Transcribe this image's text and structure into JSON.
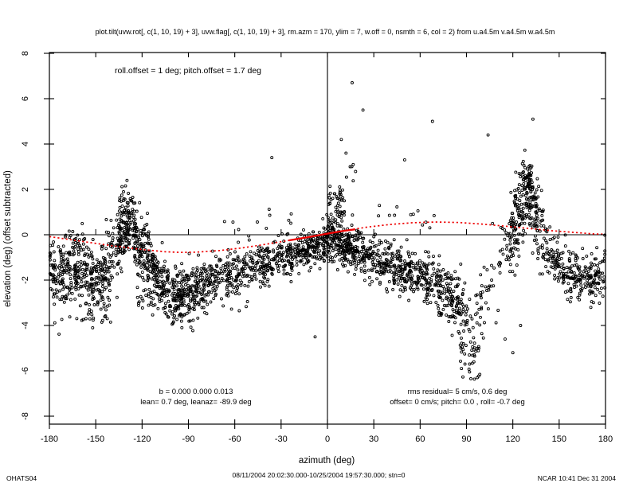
{
  "title": "plot.tilt(uvw.rot[, c(1, 10, 19) + 3], uvw.flag[, c(1, 10, 19) + 3], rm.azm =  170, ylim = 7, w.off = 0, nsmth = 6, col = 2) from u.a4.5m v.a4.5m w.a4.5m",
  "annotations": {
    "offsets": "roll.offset = 1 deg; pitch.offset = 1.7 deg",
    "b_line": "b =  0.000  0.000  0.013",
    "lean_line": "lean= 0.7 deg, leanaz= -89.9 deg",
    "rms_line": "rms residual= 5 cm/s, 0.6 deg",
    "offset_line": "offset= 0 cm/s; pitch=  0.0 , roll= -0.7 deg"
  },
  "footer": {
    "left": "OHATS04",
    "center": "08/11/2004 20:02:30.000-10/25/2004 19:57:30.000; stn=0",
    "right": "NCAR 10:41 Dec 31 2004"
  },
  "chart_data": {
    "type": "scatter",
    "title": "plot.tilt(uvw.rot[, c(1, 10, 19) + 3], uvw.flag[, c(1, 10, 19) + 3], rm.azm =  170, ylim = 7, w.off = 0, nsmth = 6, col = 2) from u.a4.5m v.a4.5m w.a4.5m",
    "xlabel": "azimuth (deg)",
    "ylabel": "elevation (deg)  (offset subtracted)",
    "xlim": [
      -180,
      180
    ],
    "ylim": [
      -8.35,
      8.05
    ],
    "x_ticks": [
      -180,
      -150,
      -120,
      -90,
      -60,
      -30,
      0,
      30,
      60,
      90,
      120,
      150,
      180
    ],
    "y_ticks": [
      -8,
      -6,
      -4,
      -2,
      0,
      2,
      4,
      6,
      8
    ],
    "grid": false,
    "crosshair": {
      "x": 0,
      "y": 0
    },
    "marker": {
      "shape": "open-circle",
      "radius": 1.5,
      "color": "#000000"
    },
    "fit_color": "#ee0000",
    "point_color": "#000000",
    "seed": 1337,
    "band": {
      "az": [
        -180,
        -170,
        -162,
        -155,
        -148,
        -142,
        -137,
        -132,
        -128,
        -124,
        -119,
        -113,
        -107,
        -100,
        -92,
        -84,
        -75,
        -65,
        -55,
        -45,
        -35,
        -25,
        -15,
        -8,
        -2,
        3,
        8,
        15,
        25,
        35,
        45,
        55,
        65,
        75,
        82,
        88,
        94,
        100,
        107,
        113,
        118,
        124,
        129,
        133,
        138,
        143,
        150,
        160,
        170,
        180
      ],
      "mean": [
        -1.7,
        -1.85,
        -1.5,
        -1.95,
        -2.0,
        -1.6,
        -0.7,
        0.3,
        0.6,
        0.1,
        -0.7,
        -1.6,
        -2.3,
        -2.6,
        -2.6,
        -2.4,
        -2.05,
        -1.85,
        -1.7,
        -1.45,
        -1.2,
        -0.95,
        -0.7,
        -0.5,
        -0.35,
        -0.3,
        -0.4,
        -0.6,
        -0.85,
        -1.15,
        -1.4,
        -1.7,
        -2.0,
        -2.45,
        -2.9,
        -3.6,
        -4.2,
        -3.2,
        -1.9,
        -1.0,
        -0.3,
        0.9,
        1.9,
        1.6,
        0.2,
        -0.7,
        -1.4,
        -1.85,
        -1.9,
        -1.75
      ],
      "sd": [
        0.85,
        0.8,
        0.9,
        0.7,
        0.65,
        0.9,
        1.0,
        0.8,
        0.7,
        0.8,
        0.8,
        0.7,
        0.6,
        0.55,
        0.6,
        0.6,
        0.55,
        0.5,
        0.5,
        0.5,
        0.5,
        0.45,
        0.45,
        0.4,
        0.4,
        0.45,
        0.45,
        0.45,
        0.5,
        0.5,
        0.5,
        0.5,
        0.55,
        0.6,
        0.7,
        0.9,
        1.0,
        1.1,
        0.9,
        0.8,
        0.8,
        0.9,
        0.7,
        0.8,
        0.8,
        0.7,
        0.6,
        0.55,
        0.55,
        0.6
      ]
    },
    "segments": [
      [
        -180,
        -160,
        180
      ],
      [
        -160,
        -145,
        135
      ],
      [
        -145,
        -136,
        70
      ],
      [
        -136,
        -120,
        215
      ],
      [
        -120,
        -100,
        205
      ],
      [
        -100,
        -75,
        260
      ],
      [
        -75,
        -45,
        180
      ],
      [
        -45,
        -20,
        170
      ],
      [
        -20,
        -3,
        130
      ],
      [
        -3,
        15,
        190
      ],
      [
        15,
        45,
        225
      ],
      [
        45,
        70,
        190
      ],
      [
        70,
        88,
        150
      ],
      [
        88,
        103,
        48
      ],
      [
        103,
        118,
        36
      ],
      [
        118,
        137,
        230
      ],
      [
        137,
        152,
        90
      ],
      [
        152,
        180,
        190
      ]
    ],
    "plumes": [
      {
        "az0": 0,
        "az1": 11,
        "el0": -0.1,
        "el1": 2.25,
        "count": 70
      },
      {
        "az0": 8,
        "az1": 20,
        "el0": 2.2,
        "el1": 3.9,
        "count": 6
      },
      {
        "az0": 86,
        "az1": 99,
        "el0": -6.4,
        "el1": -4.4,
        "count": 26
      },
      {
        "az0": -160,
        "az1": -140,
        "el0": -3.9,
        "el1": -3.0,
        "count": 18
      },
      {
        "az0": -170,
        "az1": -157,
        "el0": -0.65,
        "el1": 0.1,
        "count": 16
      },
      {
        "az0": 126,
        "az1": 133,
        "el0": 2.2,
        "el1": 3.3,
        "count": 20
      },
      {
        "az0": -124,
        "az1": -112,
        "el0": -3.6,
        "el1": -2.6,
        "count": 14
      },
      {
        "az0": 30,
        "az1": 75,
        "el0": 0.3,
        "el1": 1.4,
        "count": 12
      },
      {
        "az0": -70,
        "az1": -20,
        "el0": 0.2,
        "el1": 1.2,
        "count": 10
      }
    ],
    "outliers": [
      [
        16,
        6.7
      ],
      [
        23,
        5.5
      ],
      [
        9,
        4.2
      ],
      [
        12,
        3.6
      ],
      [
        -36,
        3.4
      ],
      [
        50,
        3.3
      ],
      [
        68,
        5.0
      ],
      [
        133,
        5.1
      ],
      [
        104,
        4.4
      ],
      [
        97,
        -6.3
      ],
      [
        92,
        -6.05
      ],
      [
        89,
        -5.7
      ],
      [
        -8,
        -4.5
      ],
      [
        -152,
        -4.1
      ],
      [
        -100,
        -3.9
      ],
      [
        120,
        -5.2
      ],
      [
        115,
        -4.6
      ],
      [
        125,
        -4.0
      ]
    ],
    "fit_curve": [
      [
        -180,
        -0.08
      ],
      [
        -160,
        -0.28
      ],
      [
        -140,
        -0.48
      ],
      [
        -120,
        -0.65
      ],
      [
        -105,
        -0.75
      ],
      [
        -95,
        -0.78
      ],
      [
        -85,
        -0.77
      ],
      [
        -70,
        -0.7
      ],
      [
        -55,
        -0.58
      ],
      [
        -40,
        -0.42
      ],
      [
        -25,
        -0.25
      ],
      [
        -10,
        -0.07
      ],
      [
        0,
        0.05
      ],
      [
        10,
        0.17
      ],
      [
        25,
        0.33
      ],
      [
        40,
        0.45
      ],
      [
        55,
        0.53
      ],
      [
        70,
        0.56
      ],
      [
        85,
        0.54
      ],
      [
        100,
        0.47
      ],
      [
        115,
        0.38
      ],
      [
        130,
        0.28
      ],
      [
        145,
        0.18
      ],
      [
        160,
        0.1
      ],
      [
        172,
        0.04
      ],
      [
        180,
        0.02
      ]
    ],
    "fit_solid": [
      [
        -25,
        -0.25
      ],
      [
        -12,
        -0.1
      ],
      [
        0,
        0.05
      ],
      [
        10,
        0.17
      ],
      [
        18,
        0.24
      ]
    ]
  }
}
